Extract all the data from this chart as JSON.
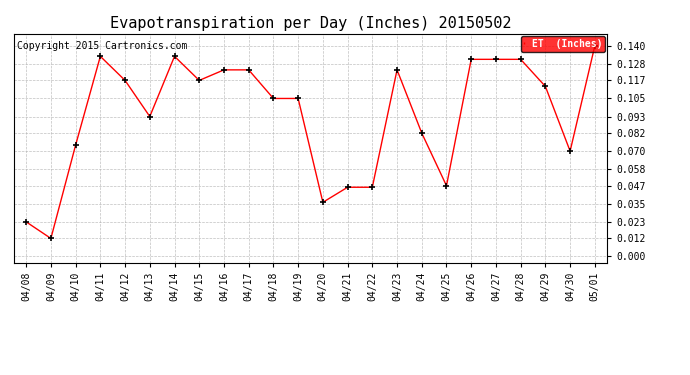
{
  "title": "Evapotranspiration per Day (Inches) 20150502",
  "copyright": "Copyright 2015 Cartronics.com",
  "legend_label": "ET  (Inches)",
  "x_labels": [
    "04/08",
    "04/09",
    "04/10",
    "04/11",
    "04/12",
    "04/13",
    "04/14",
    "04/15",
    "04/16",
    "04/17",
    "04/18",
    "04/19",
    "04/20",
    "04/21",
    "04/22",
    "04/23",
    "04/24",
    "04/25",
    "04/26",
    "04/27",
    "04/28",
    "04/29",
    "04/30",
    "05/01"
  ],
  "y_values": [
    0.023,
    0.012,
    0.074,
    0.133,
    0.117,
    0.093,
    0.133,
    0.117,
    0.124,
    0.124,
    0.105,
    0.105,
    0.036,
    0.046,
    0.046,
    0.124,
    0.082,
    0.047,
    0.131,
    0.131,
    0.131,
    0.113,
    0.07,
    0.14
  ],
  "y_ticks": [
    0.0,
    0.012,
    0.023,
    0.035,
    0.047,
    0.058,
    0.07,
    0.082,
    0.093,
    0.105,
    0.117,
    0.128,
    0.14
  ],
  "line_color": "red",
  "marker_color": "black",
  "background_color": "#ffffff",
  "grid_color": "#b0b0b0",
  "title_fontsize": 11,
  "copyright_fontsize": 7,
  "tick_fontsize": 7,
  "legend_bg": "red",
  "legend_text_color": "white",
  "fig_width": 6.9,
  "fig_height": 3.75,
  "dpi": 100
}
